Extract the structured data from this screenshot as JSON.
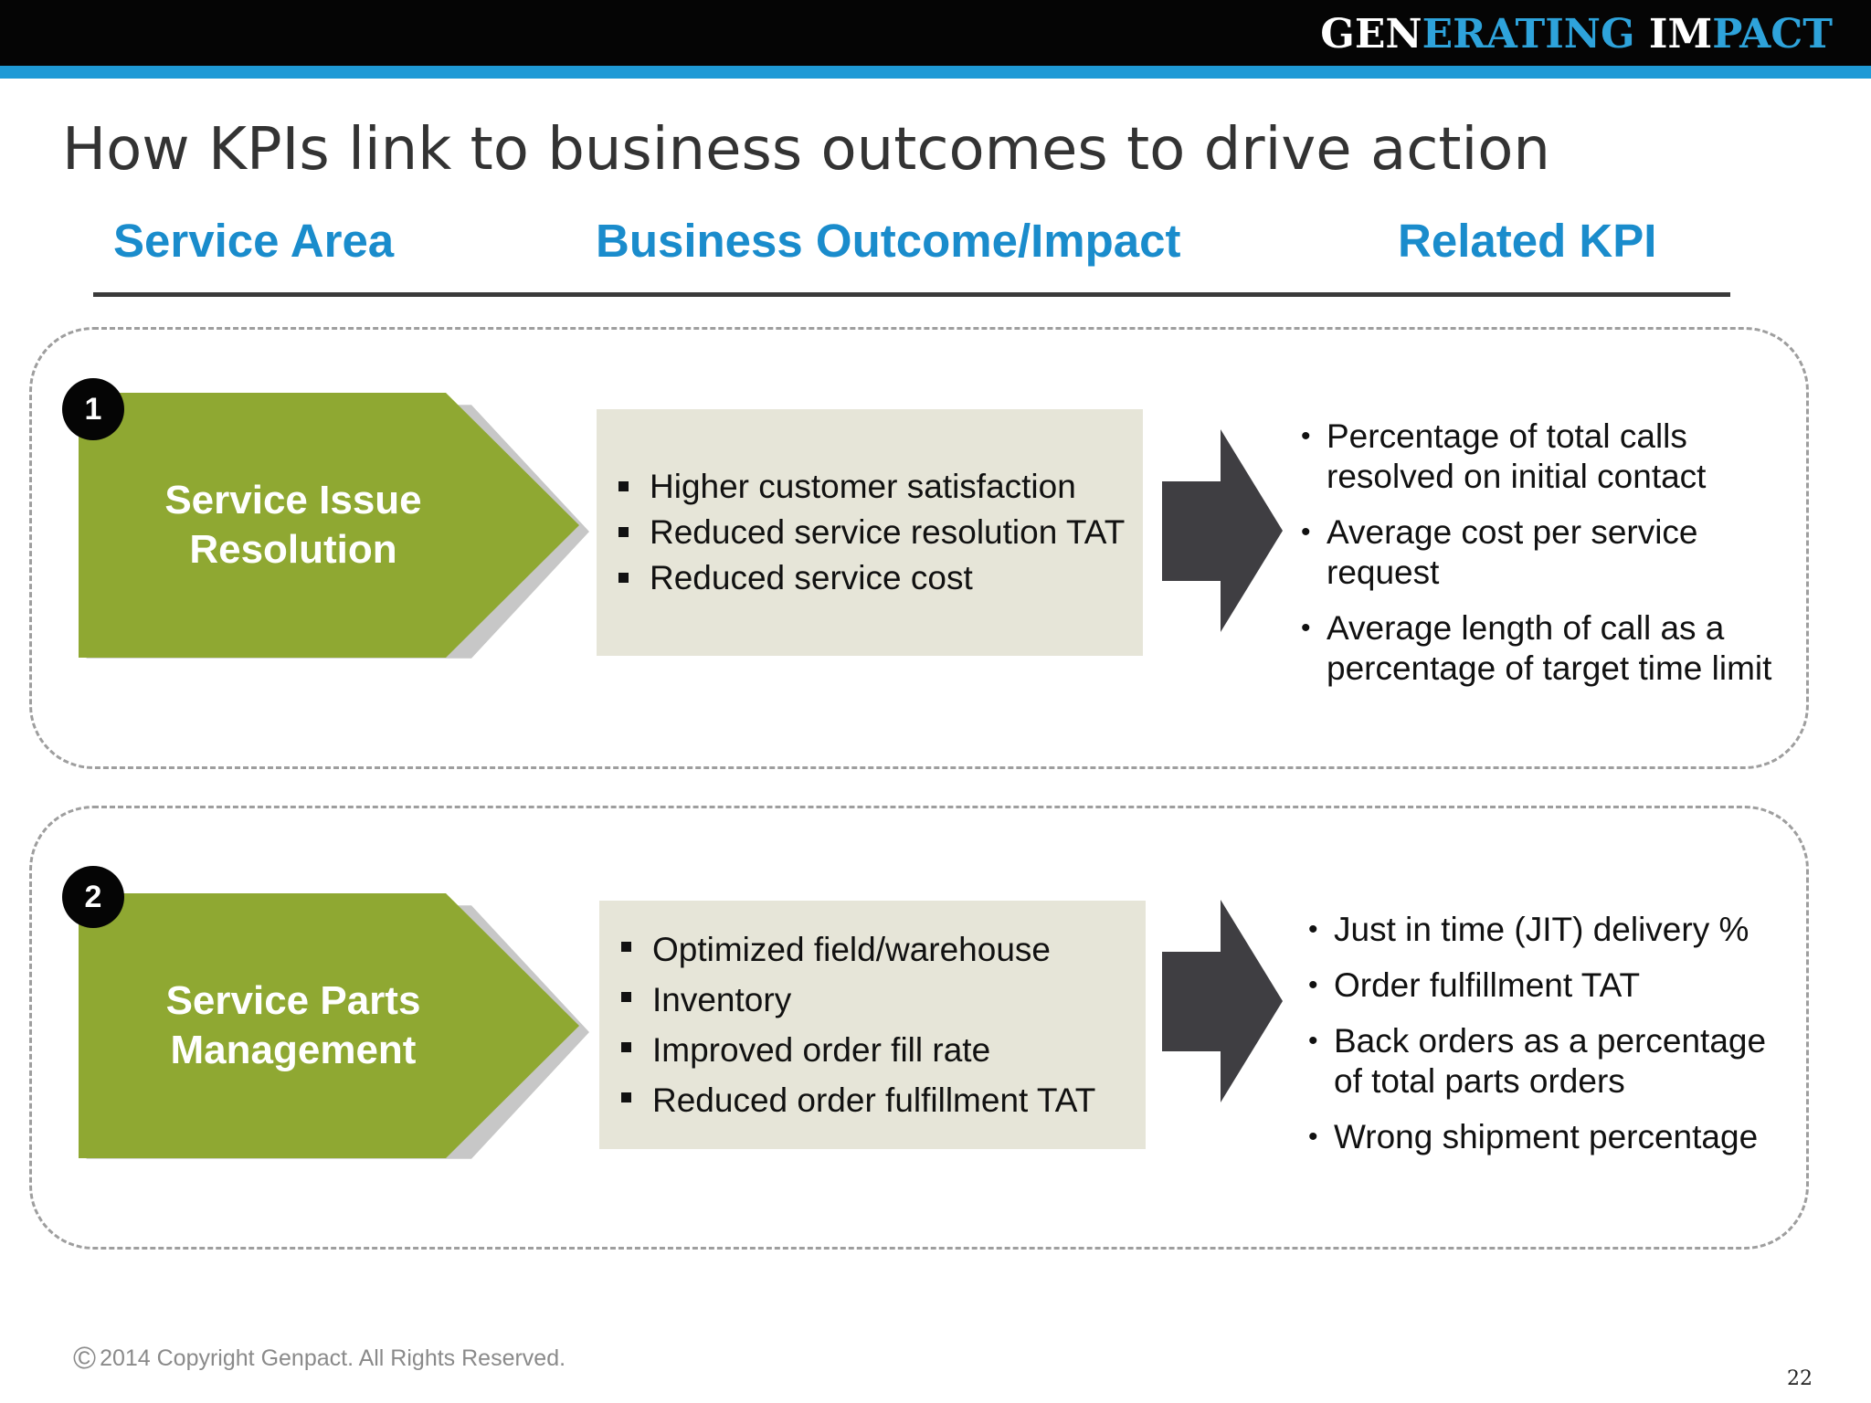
{
  "header": {
    "brand_part1": "GEN",
    "brand_part2": "ERATING",
    "brand_part3": " IM",
    "brand_part4": "PACT",
    "bar_color": "#050505",
    "stripe_color": "#1f9ad6"
  },
  "title": "How KPIs link to business outcomes to drive action",
  "columns": {
    "service_area": "Service Area",
    "business_outcome": "Business Outcome/Impact",
    "related_kpi": "Related KPI"
  },
  "groups": [
    {
      "number": "1",
      "service_area": "Service Issue\n  Resolution",
      "outcomes": [
        "Higher customer satisfaction",
        "Reduced service resolution TAT",
        "Reduced service cost"
      ],
      "kpis": [
        "Percentage of total calls resolved on initial contact",
        "Average cost per service request",
        "Average length of call as a percentage of target time limit"
      ]
    },
    {
      "number": "2",
      "service_area": "Service Parts\nManagement",
      "outcomes": [
        "Optimized field/warehouse",
        "Inventory",
        "Improved order fill rate",
        "Reduced order fulfillment TAT"
      ],
      "kpis": [
        "Just in time (JIT) delivery %",
        "Order fulfillment TAT",
        "Back orders as a percentage of total parts orders",
        "Wrong shipment percentage"
      ]
    }
  ],
  "colors": {
    "accent_blue": "#1a8ccc",
    "area_green": "#8fa832",
    "outcome_bg": "#e6e5d8",
    "arrow_dark": "#3f3e42"
  },
  "footer": {
    "copyright_symbol": "©",
    "copyright": "2014 Copyright Genpact. All Rights Reserved.",
    "page_number": "22"
  }
}
